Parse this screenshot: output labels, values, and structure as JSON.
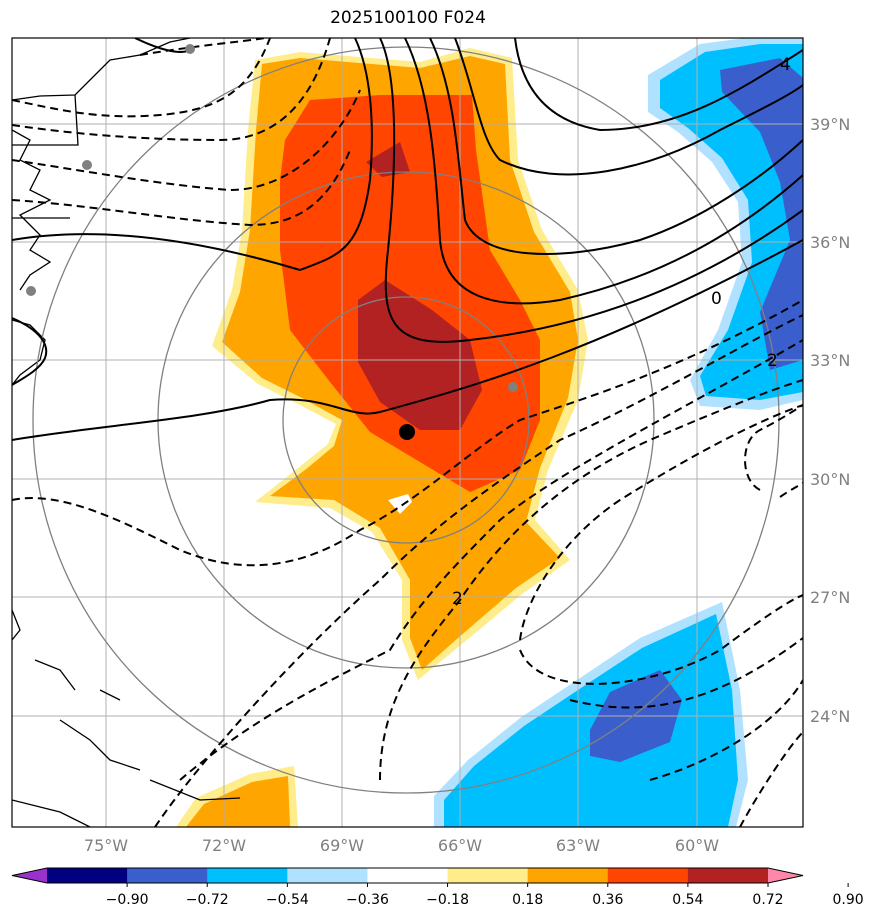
{
  "title": "2025100100 F024",
  "map": {
    "lon_labels": [
      "75°W",
      "72°W",
      "69°W",
      "66°W",
      "63°W",
      "60°W"
    ],
    "lat_labels": [
      "39°N",
      "36°N",
      "33°N",
      "30°N",
      "27°N",
      "24°N"
    ],
    "contour_labels": [
      "4",
      "0",
      "2",
      "2",
      "2"
    ],
    "colors": {
      "dark_red": "#b22222",
      "red": "#ff4500",
      "orange": "#ffa500",
      "yellow": "#ffec8b",
      "light_blue": "#b0e2ff",
      "sky_blue": "#00bfff",
      "royal_blue": "#3a5fcd"
    }
  },
  "colorbar": {
    "colors": [
      "#9932cc",
      "#000080",
      "#3a5fcd",
      "#00bfff",
      "#b0e2ff",
      "#ffffff",
      "#ffec8b",
      "#ffa500",
      "#ff4500",
      "#b22222",
      "#ff88aa"
    ],
    "tick_labels": [
      "−0.90",
      "−0.72",
      "−0.54",
      "−0.36",
      "−0.18",
      "0.18",
      "0.36",
      "0.54",
      "0.72",
      "0.90"
    ]
  }
}
